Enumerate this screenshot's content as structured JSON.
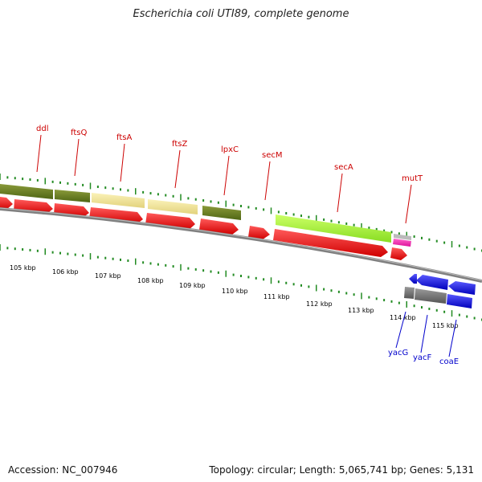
{
  "title": "Escherichia coli UTI89, complete genome",
  "footer": {
    "accession": "Accession: NC_007946",
    "topology": "Topology: circular; Length: 5,065,741 bp; Genes: 5,131"
  },
  "kbp_ticks": [
    "105 kbp",
    "106 kbp",
    "107 kbp",
    "108 kbp",
    "109 kbp",
    "110 kbp",
    "111 kbp",
    "112 kbp",
    "113 kbp",
    "114 kbp",
    "115 kbp"
  ],
  "genes_top": [
    "ddl",
    "ftsQ",
    "ftsA",
    "ftsZ",
    "lpxC",
    "secM",
    "secA",
    "mutT"
  ],
  "genes_bottom": [
    "yacG",
    "yacF",
    "coaE"
  ],
  "colors": {
    "forward_gene": "#ee0000",
    "reverse_gene": "#0000dd",
    "backbone": "#808080",
    "tick": "#228B22",
    "label_top": "#cc0000",
    "label_bottom": "#0000cc"
  }
}
